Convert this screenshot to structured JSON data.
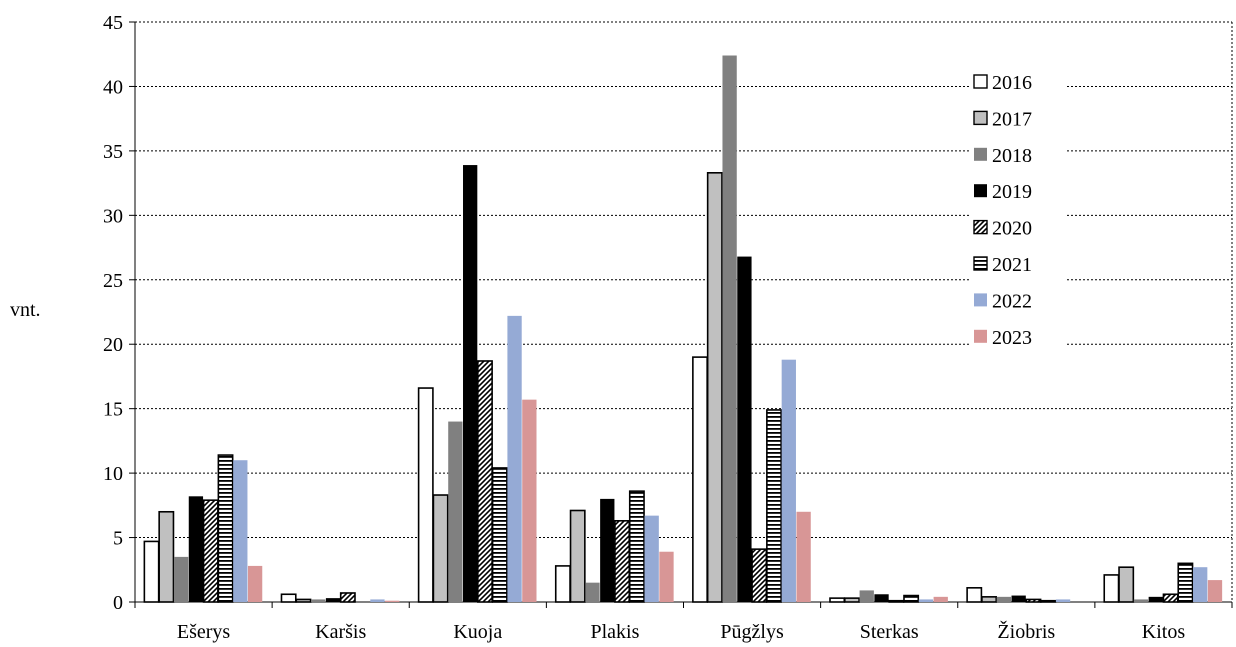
{
  "chart_data": {
    "type": "bar",
    "title": "",
    "xlabel": "",
    "ylabel": "vnt.",
    "ylim": [
      0,
      45
    ],
    "yticks": [
      0,
      5,
      10,
      15,
      20,
      25,
      30,
      35,
      40,
      45
    ],
    "grid": true,
    "legend_position": "top-right",
    "categories": [
      "Ešerys",
      "Karšis",
      "Kuoja",
      "Plakis",
      "Pūgžlys",
      "Sterkas",
      "Žiobris",
      "Kitos"
    ],
    "series": [
      {
        "name": "2016",
        "fill": "#ffffff",
        "pattern": "none",
        "values": [
          4.7,
          0.6,
          16.6,
          2.8,
          19.0,
          0.3,
          1.1,
          2.1
        ]
      },
      {
        "name": "2017",
        "fill": "#c0c0c0",
        "pattern": "none",
        "values": [
          7.0,
          0.2,
          8.3,
          7.1,
          33.3,
          0.3,
          0.4,
          2.7
        ]
      },
      {
        "name": "2018",
        "fill": "#808080",
        "pattern": "none",
        "values": [
          3.5,
          0.2,
          14.0,
          1.5,
          42.4,
          0.9,
          0.4,
          0.2
        ]
      },
      {
        "name": "2019",
        "fill": "#000000",
        "pattern": "none",
        "values": [
          8.2,
          0.3,
          33.9,
          8.0,
          26.8,
          0.6,
          0.5,
          0.4
        ]
      },
      {
        "name": "2020",
        "fill": "#ffffff",
        "pattern": "diagonal",
        "values": [
          7.9,
          0.7,
          18.7,
          6.3,
          4.1,
          0.1,
          0.2,
          0.6
        ]
      },
      {
        "name": "2021",
        "fill": "#ffffff",
        "pattern": "horizontal",
        "values": [
          11.4,
          0.0,
          10.4,
          8.6,
          14.9,
          0.5,
          0.1,
          3.0
        ]
      },
      {
        "name": "2022",
        "fill": "#95aad5",
        "pattern": "none",
        "values": [
          11.0,
          0.2,
          22.2,
          6.7,
          18.8,
          0.2,
          0.2,
          2.7
        ]
      },
      {
        "name": "2023",
        "fill": "#d89696",
        "pattern": "none",
        "values": [
          2.8,
          0.1,
          15.7,
          3.9,
          7.0,
          0.4,
          0.0,
          1.7
        ]
      }
    ]
  }
}
